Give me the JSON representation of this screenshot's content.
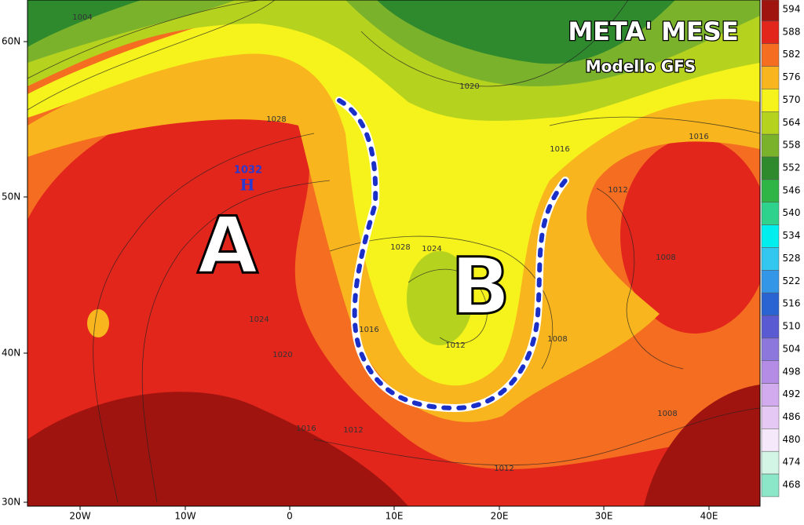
{
  "header": {
    "title": "META' MESE",
    "subtitle": "Modello GFS"
  },
  "centers": {
    "high": "A",
    "low": "B",
    "high_mark": "H",
    "high_pressure": 1032
  },
  "isobars": [
    1004,
    1020,
    1028,
    1016,
    1016,
    1012,
    1028,
    1024,
    1008,
    1024,
    1016,
    1008,
    1012,
    1020,
    1016,
    1012,
    1008,
    1012
  ],
  "axes": {
    "lat": [
      "60N",
      "50N",
      "40N",
      "30N"
    ],
    "lon": [
      "20W",
      "10W",
      "0",
      "10E",
      "20E",
      "30E",
      "40E"
    ]
  },
  "colorbar": [
    {
      "value": 594,
      "color": "#a0140f"
    },
    {
      "value": 588,
      "color": "#e2261c"
    },
    {
      "value": 582,
      "color": "#f46d20"
    },
    {
      "value": 576,
      "color": "#f9b51e"
    },
    {
      "value": 570,
      "color": "#f5f21c"
    },
    {
      "value": 564,
      "color": "#b5d21f"
    },
    {
      "value": 558,
      "color": "#7bb22b"
    },
    {
      "value": 552,
      "color": "#2f8a2e"
    },
    {
      "value": 546,
      "color": "#2fb446"
    },
    {
      "value": 540,
      "color": "#2fd28c"
    },
    {
      "value": 534,
      "color": "#00eeee"
    },
    {
      "value": 528,
      "color": "#33c6ef"
    },
    {
      "value": 522,
      "color": "#3396e6"
    },
    {
      "value": 516,
      "color": "#2a64d2"
    },
    {
      "value": 510,
      "color": "#5a5ad2"
    },
    {
      "value": 504,
      "color": "#8c78dc"
    },
    {
      "value": 498,
      "color": "#b48ce6"
    },
    {
      "value": 492,
      "color": "#d2aaee"
    },
    {
      "value": 486,
      "color": "#e6c8f5"
    },
    {
      "value": 480,
      "color": "#f5e8fa"
    },
    {
      "value": 474,
      "color": "#d2f5e6"
    },
    {
      "value": 468,
      "color": "#8ce6c8"
    }
  ]
}
